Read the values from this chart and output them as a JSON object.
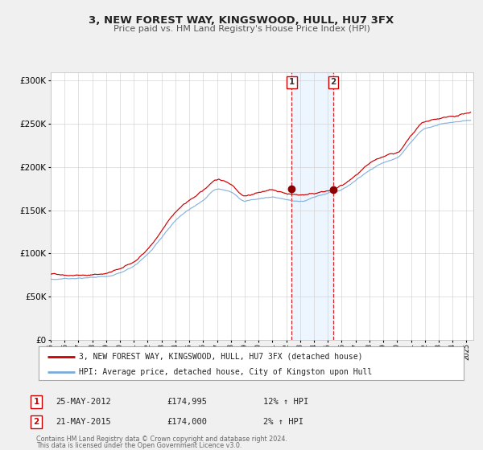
{
  "title": "3, NEW FOREST WAY, KINGSWOOD, HULL, HU7 3FX",
  "subtitle": "Price paid vs. HM Land Registry's House Price Index (HPI)",
  "legend_line1": "3, NEW FOREST WAY, KINGSWOOD, HULL, HU7 3FX (detached house)",
  "legend_line2": "HPI: Average price, detached house, City of Kingston upon Hull",
  "sale1_date": "25-MAY-2012",
  "sale1_price": "£174,995",
  "sale1_hpi": "12% ↑ HPI",
  "sale2_date": "21-MAY-2015",
  "sale2_price": "£174,000",
  "sale2_hpi": "2% ↑ HPI",
  "footer_line1": "Contains HM Land Registry data © Crown copyright and database right 2024.",
  "footer_line2": "This data is licensed under the Open Government Licence v3.0.",
  "red_line_color": "#cc0000",
  "blue_line_color": "#7aabdb",
  "marker_color": "#8b0000",
  "sale1_x": 2012.39,
  "sale1_y": 174995,
  "sale2_x": 2015.39,
  "sale2_y": 174000,
  "vline1_x": 2012.39,
  "vline2_x": 2015.39,
  "shade_color": "#ddeeff",
  "shade_alpha": 0.5,
  "ylim": [
    0,
    310000
  ],
  "xlim_start": 1995.0,
  "xlim_end": 2025.5,
  "background_color": "#f0f0f0",
  "plot_bg_color": "#ffffff",
  "grid_color": "#cccccc",
  "legend_box_color": "#ffffff",
  "legend_border_color": "#aaaaaa"
}
